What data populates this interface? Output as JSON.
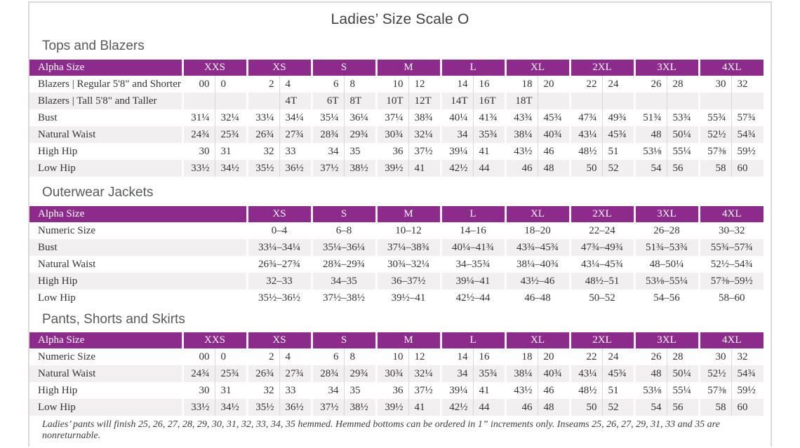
{
  "page": {
    "title": "Ladies’ Size Scale O",
    "footnote": "Ladies’ pants will finish 25, 26, 27, 28, 29, 30, 31, 32, 33, 34, 35 hemmed. Hemmed bottoms can be ordered in 1” increments only. Inseams 25, 26, 27, 29, 31, 33 and 35 are nonreturnable."
  },
  "colors": {
    "header_purple": "#8c2b8c",
    "row_stripe": "#f2eff0",
    "heading_gray": "#58595b",
    "page_border": "#dcd8d8"
  },
  "tables": [
    {
      "section_title": "Tops and Blazers",
      "header_label": "Alpha Size",
      "size_groups": [
        "XXS",
        "XS",
        "S",
        "M",
        "L",
        "XL",
        "2XL",
        "3XL",
        "4XL"
      ],
      "split_columns": true,
      "rows": [
        {
          "label": "Blazers | Regular 5'8\" and Shorter",
          "values": [
            "00",
            "0",
            "2",
            "4",
            "6",
            "8",
            "10",
            "12",
            "14",
            "16",
            "18",
            "20",
            "22",
            "24",
            "26",
            "28",
            "30",
            "32"
          ]
        },
        {
          "label": "Blazers | Tall 5'8\" and Taller",
          "values": [
            "",
            "",
            "",
            "4T",
            "6T",
            "8T",
            "10T",
            "12T",
            "14T",
            "16T",
            "18T",
            "",
            "",
            "",
            "",
            "",
            "",
            ""
          ]
        },
        {
          "label": "Bust",
          "values": [
            "31¼",
            "32¼",
            "33¼",
            "34¼",
            "35¼",
            "36¼",
            "37¼",
            "38¾",
            "40¼",
            "41¾",
            "43¾",
            "45¾",
            "47¾",
            "49¾",
            "51¾",
            "53¾",
            "55¾",
            "57¾"
          ]
        },
        {
          "label": "Natural Waist",
          "values": [
            "24¾",
            "25¾",
            "26¾",
            "27¾",
            "28¾",
            "29¾",
            "30¾",
            "32¼",
            "34",
            "35¾",
            "38¼",
            "40¾",
            "43¼",
            "45¾",
            "48",
            "50¼",
            "52½",
            "54¾"
          ]
        },
        {
          "label": "High Hip",
          "values": [
            "30",
            "31",
            "32",
            "33",
            "34",
            "35",
            "36",
            "37½",
            "39¼",
            "41",
            "43½",
            "46",
            "48½",
            "51",
            "53⅛",
            "55¼",
            "57⅜",
            "59½"
          ]
        },
        {
          "label": "Low Hip",
          "values": [
            "33½",
            "34½",
            "35½",
            "36½",
            "37½",
            "38½",
            "39½",
            "41",
            "42½",
            "44",
            "46",
            "48",
            "50",
            "52",
            "54",
            "56",
            "58",
            "60"
          ]
        }
      ]
    },
    {
      "section_title": "Outerwear Jackets",
      "header_label": "Alpha Size",
      "size_groups": [
        "XS",
        "S",
        "M",
        "L",
        "XL",
        "2XL",
        "3XL",
        "4XL"
      ],
      "split_columns": false,
      "rows": [
        {
          "label": "Numeric Size",
          "values": [
            "0–4",
            "6–8",
            "10–12",
            "14–16",
            "18–20",
            "22–24",
            "26–28",
            "30–32"
          ]
        },
        {
          "label": "Bust",
          "values": [
            "33¼–34¼",
            "35¼–36¼",
            "37¼–38¾",
            "40¼–41¾",
            "43¾–45¾",
            "47¾–49¾",
            "51¾–53¾",
            "55¾–57¾"
          ]
        },
        {
          "label": "Natural Waist",
          "values": [
            "26¾–27¾",
            "28¾–29¾",
            "30¾–32¼",
            "34–35¾",
            "38¼–40¾",
            "43¼–45¾",
            "48–50¼",
            "52½–54¾"
          ]
        },
        {
          "label": "High Hip",
          "values": [
            "32–33",
            "34–35",
            "36–37½",
            "39¼–41",
            "43½–46",
            "48½–51",
            "53⅛–55¼",
            "57⅜–59½"
          ]
        },
        {
          "label": "Low Hip",
          "values": [
            "35½–36½",
            "37½–38½",
            "39½–41",
            "42½–44",
            "46–48",
            "50–52",
            "54–56",
            "58–60"
          ]
        }
      ]
    },
    {
      "section_title": "Pants, Shorts and Skirts",
      "header_label": "Alpha Size",
      "size_groups": [
        "XXS",
        "XS",
        "S",
        "M",
        "L",
        "XL",
        "2XL",
        "3XL",
        "4XL"
      ],
      "split_columns": true,
      "rows": [
        {
          "label": "Numeric Size",
          "values": [
            "00",
            "0",
            "2",
            "4",
            "6",
            "8",
            "10",
            "12",
            "14",
            "16",
            "18",
            "20",
            "22",
            "24",
            "26",
            "28",
            "30",
            "32"
          ]
        },
        {
          "label": "Natural Waist",
          "values": [
            "24¾",
            "25¾",
            "26¾",
            "27¾",
            "28¾",
            "29¾",
            "30¾",
            "32¼",
            "34",
            "35¾",
            "38¼",
            "40¾",
            "43¼",
            "45¾",
            "48",
            "50¼",
            "52½",
            "54¾"
          ]
        },
        {
          "label": "High Hip",
          "values": [
            "30",
            "31",
            "32",
            "33",
            "34",
            "35",
            "36",
            "37½",
            "39¼",
            "41",
            "43½",
            "46",
            "48½",
            "51",
            "53⅛",
            "55¼",
            "57⅜",
            "59½"
          ]
        },
        {
          "label": "Low Hip",
          "values": [
            "33½",
            "34½",
            "35½",
            "36½",
            "37½",
            "38½",
            "39½",
            "41",
            "42½",
            "44",
            "46",
            "48",
            "50",
            "52",
            "54",
            "56",
            "58",
            "60"
          ]
        }
      ]
    }
  ]
}
